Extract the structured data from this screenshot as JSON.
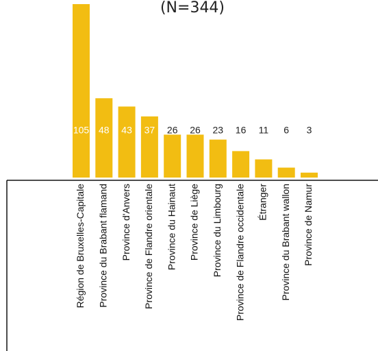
{
  "chart_data": {
    "type": "bar",
    "title": "(N=344)",
    "categories": [
      "Région de Bruxelles-Capitale",
      "Province du Brabant flamand",
      "Province d'Anvers",
      "Province de Flandre orientale",
      "Province du Hainaut",
      "Province de Liège",
      "Province du Limbourg",
      "Province de Flandre occidentale",
      "Étranger",
      "Province du Brabant wallon",
      "Province de Namur"
    ],
    "values": [
      105,
      48,
      43,
      37,
      26,
      26,
      23,
      16,
      11,
      6,
      3
    ],
    "data_labels": [
      "105",
      "48",
      "43",
      "37",
      "26",
      "26",
      "23",
      "16",
      "11",
      "6",
      "3"
    ],
    "xlabel": "",
    "ylabel": "",
    "ylim": [
      0,
      105
    ],
    "grid": false,
    "legend": "none",
    "bar_color": "#f2bd12",
    "label_inside_color": "#ffffff",
    "label_outside_color": "#222222"
  }
}
